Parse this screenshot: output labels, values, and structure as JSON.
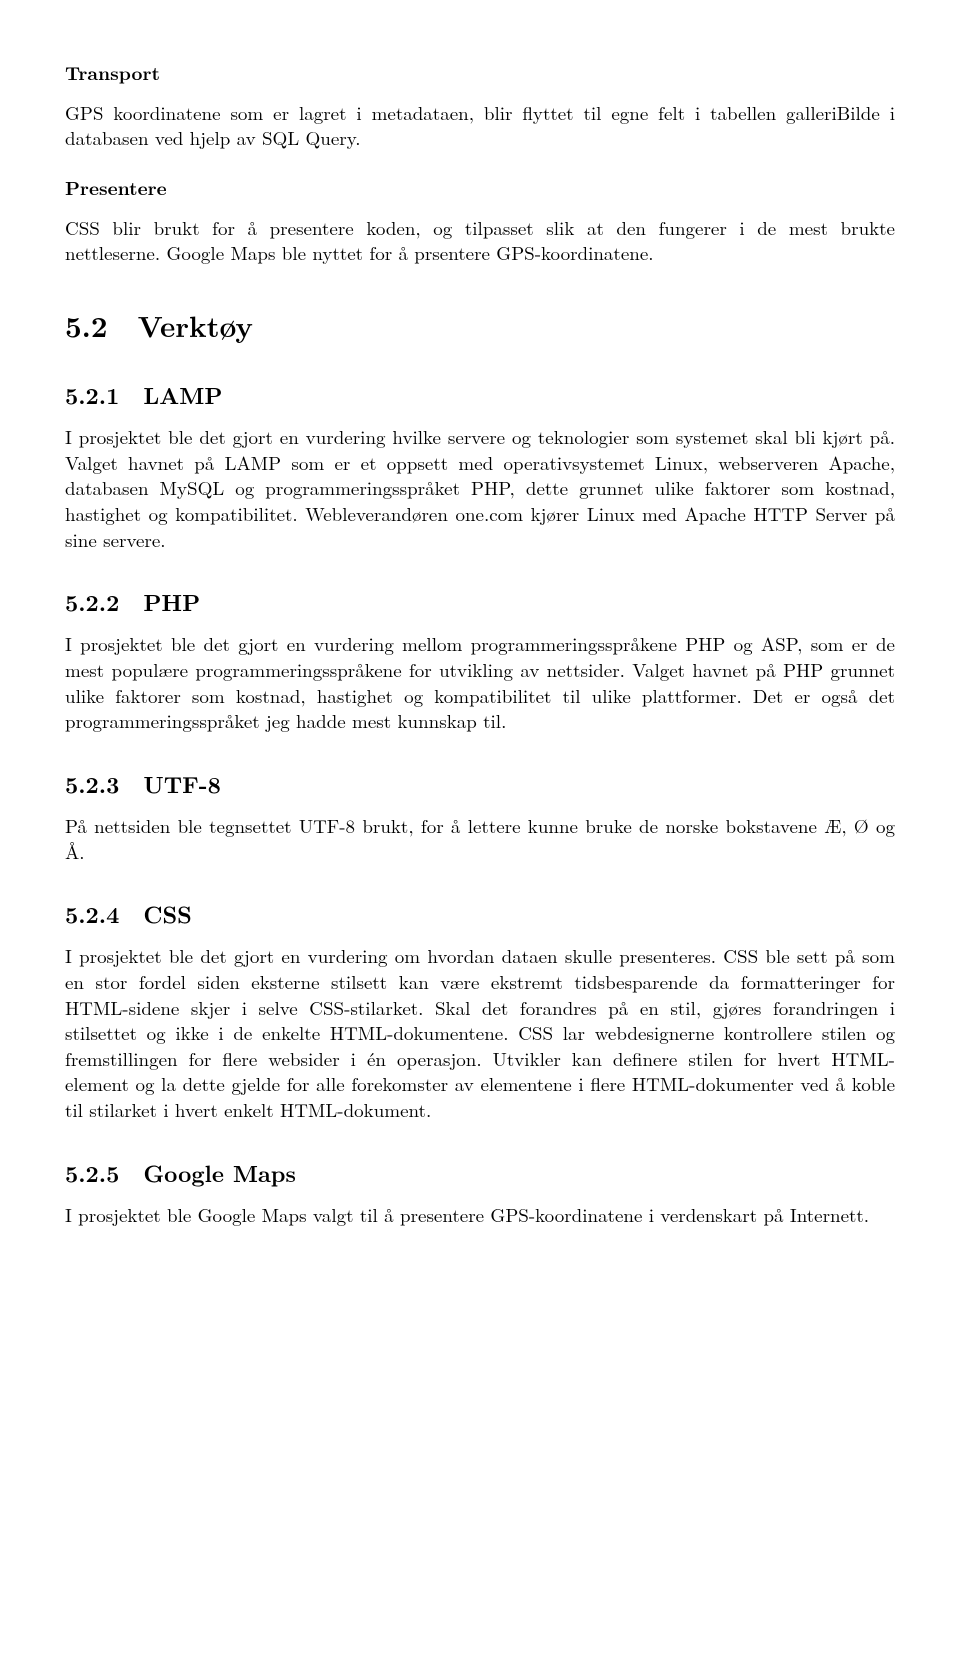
{
  "transport": {
    "heading": "Transport",
    "body": "GPS koordinatene som er lagret i metadataen, blir flyttet til egne felt i tabellen galleriBilde i databasen ved hjelp av SQL Query."
  },
  "presentere": {
    "heading": "Presentere",
    "body": "CSS blir brukt for å presentere koden, og tilpasset slik at den fungerer i de mest brukte nettleserne. Google Maps ble nyttet for å prsentere GPS-koordinatene."
  },
  "s52": {
    "num": "5.2",
    "title": "Verktøy"
  },
  "s521": {
    "num": "5.2.1",
    "title": "LAMP",
    "body": "I prosjektet ble det gjort en vurdering hvilke servere og teknologier som systemet skal bli kjørt på. Valget havnet på LAMP som er et oppsett med operativsystemet Linux, webserveren Apache, databasen MySQL og programmeringsspråket PHP, dette grunnet ulike faktorer som kostnad, hastighet og kompatibilitet. Webleverandøren one.com kjører Linux med Apache HTTP Server på sine servere."
  },
  "s522": {
    "num": "5.2.2",
    "title": "PHP",
    "body": "I prosjektet ble det gjort en vurdering mellom programmeringsspråkene PHP og ASP, som er de mest populære programmeringsspråkene for utvikling av nettsider. Valget havnet på PHP grunnet ulike faktorer som kostnad, hastighet og kompatibilitet til ulike plattformer. Det er også det programmeringsspråket jeg hadde mest kunnskap til."
  },
  "s523": {
    "num": "5.2.3",
    "title": "UTF-8",
    "body": "På nettsiden ble tegnsettet UTF-8 brukt, for å lettere kunne bruke de norske bokstavene Æ, Ø og Å."
  },
  "s524": {
    "num": "5.2.4",
    "title": "CSS",
    "body": "I prosjektet ble det gjort en vurdering om hvordan dataen skulle presenteres. CSS ble sett på som en stor fordel siden eksterne stilsett kan være ekstremt tidsbesparende da formatteringer for HTML-sidene skjer i selve CSS-stilarket. Skal det forandres på en stil, gjøres forandringen i stilsettet og ikke i de enkelte HTML-dokumentene. CSS lar webdesignerne kontrollere stilen og fremstillingen for flere websider i én operasjon. Utvikler kan definere stilen for hvert HTML-element og la dette gjelde for alle forekomster av elementene i flere HTML-dokumenter ved å koble til stilarket i hvert enkelt HTML-dokument."
  },
  "s525": {
    "num": "5.2.5",
    "title": "Google Maps",
    "body": "I prosjektet ble Google Maps valgt til å presentere GPS-koordinatene i verdenskart på Internett."
  }
}
